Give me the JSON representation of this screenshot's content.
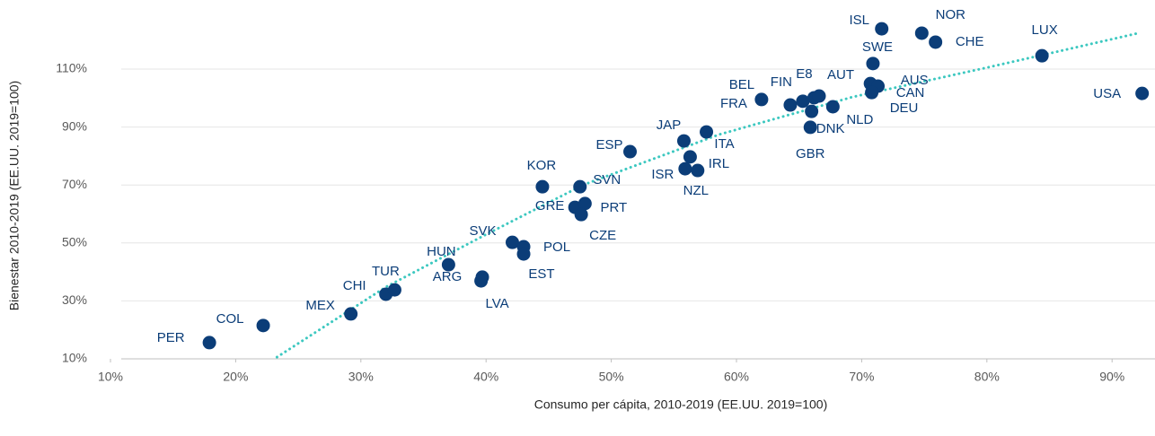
{
  "chart_data": {
    "type": "scatter",
    "x_label": "Consumo per cápita, 2010-2019 (EE.UU. 2019=100)",
    "y_label": "Bienestar 2010-2019 (EE.UU. 2019=100)",
    "color": "#0b3d78",
    "labels": [
      "PER",
      "COL",
      "MEX",
      "CHI",
      "TUR",
      "HUN",
      "ARG",
      "LVA",
      "SVK",
      "POL",
      "EST",
      "KOR",
      "SVN",
      "GRE",
      "PRT",
      "CZE",
      "ESP",
      "JAP",
      "ITA",
      "ISR",
      "IRL",
      "NZL",
      "BEL",
      "FRA",
      "FIN",
      "E8",
      "AUT",
      "DNK",
      "GBR",
      "NLD",
      "SWE",
      "AUS",
      "CAN",
      "DEU",
      "ISL",
      "NOR",
      "CHE",
      "LUX",
      "USA"
    ],
    "x": [
      17.9,
      22.2,
      29.2,
      32.0,
      32.7,
      37.0,
      39.7,
      39.6,
      42.1,
      43.0,
      43.0,
      44.5,
      47.5,
      47.1,
      47.9,
      47.6,
      51.5,
      55.8,
      57.6,
      55.9,
      56.3,
      56.9,
      62.0,
      64.3,
      65.3,
      66.2,
      66.6,
      66.0,
      65.9,
      67.7,
      70.9,
      70.7,
      71.3,
      70.8,
      71.6,
      74.8,
      75.9,
      84.4,
      92.4
    ],
    "y": [
      15.6,
      21.5,
      25.5,
      32.3,
      33.8,
      42.5,
      38.2,
      36.9,
      50.2,
      48.7,
      46.2,
      69.4,
      69.4,
      62.3,
      63.6,
      59.8,
      81.5,
      85.2,
      88.3,
      75.6,
      79.7,
      75.0,
      99.5,
      97.6,
      98.9,
      100.1,
      100.7,
      95.4,
      89.9,
      97.0,
      111.9,
      105.0,
      104.1,
      101.9,
      123.9,
      122.4,
      119.3,
      114.6,
      101.6
    ],
    "trend": {
      "color": "#3cc8c0",
      "x": [
        23.3,
        32.0,
        39.9,
        47.8,
        58.6,
        69.3,
        80.1,
        92.1
      ],
      "y": [
        10.6,
        34.8,
        52.7,
        70.1,
        87.4,
        100.4,
        110.6,
        122.4
      ]
    },
    "xlim": [
      10,
      93.5
    ],
    "ylim": [
      10,
      130
    ],
    "xticks": [
      {
        "value": 10,
        "label": "10%"
      },
      {
        "value": 20,
        "label": "20%"
      },
      {
        "value": 30,
        "label": "30%"
      },
      {
        "value": 40,
        "label": "40%"
      },
      {
        "value": 50,
        "label": "50%"
      },
      {
        "value": 60,
        "label": "60%"
      },
      {
        "value": 70,
        "label": "70%"
      },
      {
        "value": 80,
        "label": "80%"
      },
      {
        "value": 90,
        "label": "90%"
      }
    ],
    "yticks": [
      {
        "value": 10,
        "label": "10%"
      },
      {
        "value": 30,
        "label": "30%"
      },
      {
        "value": 50,
        "label": "50%"
      },
      {
        "value": 70,
        "label": "70%"
      },
      {
        "value": 90,
        "label": "90%"
      },
      {
        "value": 110,
        "label": "110%"
      }
    ],
    "grid": true
  }
}
